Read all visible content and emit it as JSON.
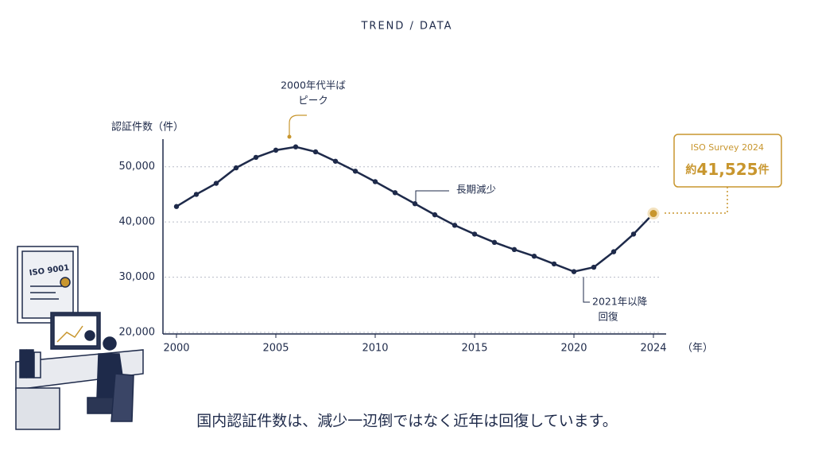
{
  "header": "TREND / DATA",
  "caption": "国内認証件数は、減少一辺倒ではなく近年は回復しています。",
  "illustration": {
    "certificate": "ISO 9001"
  },
  "chart_data": {
    "type": "line",
    "y_label": "認証件数（件）",
    "x_label": "（年）",
    "x": [
      2000,
      2001,
      2002,
      2003,
      2004,
      2005,
      2006,
      2007,
      2008,
      2009,
      2010,
      2011,
      2012,
      2013,
      2014,
      2015,
      2016,
      2017,
      2018,
      2019,
      2020,
      2021,
      2022,
      2023,
      2024
    ],
    "series": [
      {
        "name": "認証件数",
        "color": "#1e2a4a",
        "values": [
          42800,
          45000,
          47000,
          49800,
          51700,
          53000,
          53600,
          52700,
          51000,
          49200,
          47300,
          45300,
          43300,
          41300,
          39400,
          37800,
          36300,
          35000,
          33800,
          32400,
          31000,
          31800,
          34600,
          37800,
          41525
        ]
      }
    ],
    "xlim": [
      2000,
      2024
    ],
    "xticks": [
      2000,
      2005,
      2010,
      2015,
      2020,
      2024
    ],
    "ylim": [
      20000,
      55000
    ],
    "yticks": [
      {
        "value": 20000,
        "label": "20,000"
      },
      {
        "value": 30000,
        "label": "30,000"
      },
      {
        "value": 40000,
        "label": "40,000"
      },
      {
        "value": 50000,
        "label": "50,000"
      }
    ],
    "grid": true,
    "highlight_color": "#c8962e",
    "annotations": [
      {
        "lines": [
          "2000年代半ば",
          "ピーク"
        ]
      },
      {
        "lines": [
          "長期減少"
        ]
      },
      {
        "lines": [
          "2021年以降",
          "回復"
        ]
      }
    ],
    "callout": {
      "title": "ISO Survey 2024",
      "prefix": "約",
      "value": "41,525",
      "suffix": "件"
    }
  }
}
